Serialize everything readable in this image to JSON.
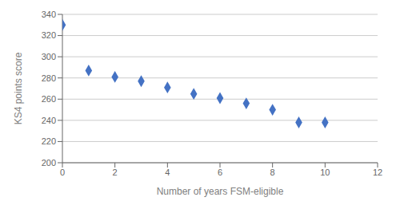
{
  "chart_data": {
    "type": "scatter",
    "x": [
      0,
      1,
      2,
      3,
      4,
      5,
      6,
      7,
      8,
      9,
      10
    ],
    "values": [
      330,
      287,
      281,
      277,
      271,
      265,
      261,
      256,
      250,
      238,
      238
    ],
    "color": "#4472C4",
    "marker": "diamond",
    "xlabel": "Number of years FSM-eligible",
    "ylabel": "KS4 points score",
    "xlim": [
      0,
      12
    ],
    "ylim": [
      200,
      340
    ],
    "xticks": [
      0,
      2,
      4,
      6,
      8,
      10,
      12
    ],
    "yticks": [
      200,
      220,
      240,
      260,
      280,
      300,
      320,
      340
    ],
    "grid": "y"
  }
}
